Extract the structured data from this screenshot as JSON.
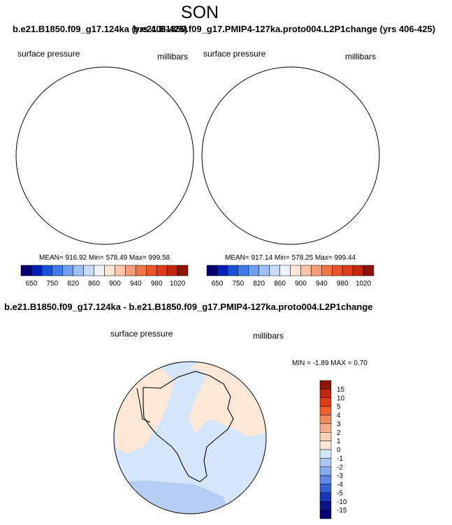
{
  "header": {
    "season": "SON",
    "case_a_title": "b.e21.B1850.f09_g17.124ka (yrs 406-425)",
    "case_b_title": "b.e21.B1850.f09_g17.PMIP4-127ka.proto004.L2P1change (yrs 406-425)"
  },
  "panel_a": {
    "variable": "surface pressure",
    "units": "millibars",
    "stats": "MEAN= 916.92  Min= 578.49  Max= 999.58"
  },
  "panel_b": {
    "variable": "surface pressure",
    "units": "millibars",
    "stats": "MEAN= 917.14  Min= 578.25  Max= 999.44"
  },
  "diff_panel": {
    "title": "b.e21.B1850.f09_g17.124ka - b.e21.B1850.f09_g17.PMIP4-127ka.proto004.L2P1change",
    "variable": "surface pressure",
    "units": "millibars",
    "stats": "MIN =  -1.89 MAX =   0.70"
  },
  "colorbar_main": {
    "labels": [
      "650",
      "750",
      "820",
      "860",
      "900",
      "940",
      "980",
      "1020"
    ],
    "colors": [
      "#08006e",
      "#0020b8",
      "#1a4fd8",
      "#3f79ec",
      "#6fa0f2",
      "#9fc0f6",
      "#c6dcfa",
      "#eef4fb",
      "#fbe6d6",
      "#f8c4a8",
      "#f39d78",
      "#ee7648",
      "#e8552b",
      "#dd3c18",
      "#c42710",
      "#8e1408"
    ]
  },
  "colorbar_diff": {
    "labels": [
      "15",
      "10",
      "5",
      "4",
      "3",
      "2",
      "1",
      "0",
      "-1",
      "-2",
      "-3",
      "-4",
      "-5",
      "-10",
      "-15"
    ],
    "colors": [
      "#8e1408",
      "#c42710",
      "#dd3c18",
      "#ee6030",
      "#f28a60",
      "#f6ad8a",
      "#fad2b8",
      "#fde8d8",
      "#d4e6fa",
      "#aac8f4",
      "#86abee",
      "#5e88e4",
      "#3462d4",
      "#1738b4",
      "#0a1488",
      "#050070"
    ]
  },
  "map_colors": {
    "ocean_outer": "#e2441c",
    "ocean_inner": "#f05a2a",
    "coast_white": "#f5f5f8",
    "light_blue": "#a8c4f0",
    "mid_blue": "#3f6fe0",
    "deep_blue": "#1030c0",
    "plateau": "#0a0d8a",
    "diff_blue": "#d6e6fa",
    "diff_peach": "#fde8d8",
    "diff_deep": "#b8cdf2"
  }
}
